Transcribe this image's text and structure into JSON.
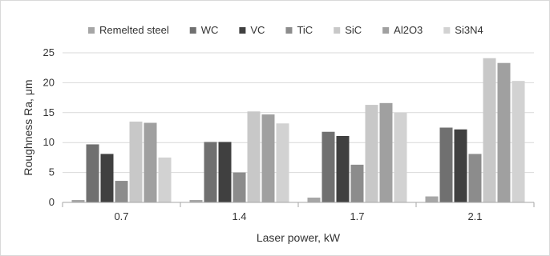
{
  "chart_data": {
    "type": "bar",
    "title": "",
    "xlabel": "Laser power, kW",
    "ylabel": "Roughness Ra, μm",
    "categories": [
      "0.7",
      "1.4",
      "1.7",
      "2.1"
    ],
    "ylim": [
      0,
      25
    ],
    "yticks": [
      0,
      5,
      10,
      15,
      20,
      25
    ],
    "grid": "horizontal",
    "legend_position": "top",
    "series": [
      {
        "name": "Remelted steel",
        "color": "#a6a6a6",
        "values": [
          0.4,
          0.4,
          0.8,
          1.0
        ]
      },
      {
        "name": "WC",
        "color": "#707070",
        "values": [
          9.7,
          10.1,
          11.8,
          12.5
        ]
      },
      {
        "name": "VC",
        "color": "#404040",
        "values": [
          8.1,
          10.1,
          11.1,
          12.2
        ]
      },
      {
        "name": "TiC",
        "color": "#8c8c8c",
        "values": [
          3.6,
          5.0,
          6.3,
          8.1
        ]
      },
      {
        "name": "SiC",
        "color": "#c8c8c8",
        "values": [
          13.5,
          15.2,
          16.3,
          24.1
        ]
      },
      {
        "name": "Al2O3",
        "color": "#a0a0a0",
        "values": [
          13.3,
          14.7,
          16.6,
          23.3
        ]
      },
      {
        "name": "Si3N4",
        "color": "#d2d2d2",
        "values": [
          7.5,
          13.2,
          15.0,
          20.3
        ]
      }
    ]
  }
}
